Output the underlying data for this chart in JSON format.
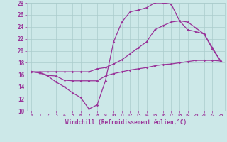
{
  "bg_color": "#cce8e8",
  "grid_color": "#aacccc",
  "line_color": "#993399",
  "marker_color": "#993399",
  "xlabel": "Windchill (Refroidissement éolien,°C)",
  "xlabel_color": "#993399",
  "xtick_color": "#993399",
  "ytick_color": "#993399",
  "xlim": [
    -0.5,
    23.5
  ],
  "ylim": [
    10,
    28
  ],
  "yticks": [
    10,
    12,
    14,
    16,
    18,
    20,
    22,
    24,
    26,
    28
  ],
  "xticks": [
    0,
    1,
    2,
    3,
    4,
    5,
    6,
    7,
    8,
    9,
    10,
    11,
    12,
    13,
    14,
    15,
    16,
    17,
    18,
    19,
    20,
    21,
    22,
    23
  ],
  "series1_x": [
    0,
    1,
    2,
    3,
    4,
    5,
    6,
    7,
    8,
    9,
    10,
    11,
    12,
    13,
    14,
    15,
    16,
    17,
    18,
    19,
    20,
    21,
    22,
    23
  ],
  "series1_y": [
    16.5,
    16.4,
    15.9,
    15.8,
    15.1,
    15.0,
    15.0,
    15.0,
    15.0,
    15.8,
    16.2,
    16.5,
    16.8,
    17.0,
    17.2,
    17.5,
    17.7,
    17.8,
    18.0,
    18.2,
    18.4,
    18.4,
    18.4,
    18.3
  ],
  "series2_x": [
    0,
    1,
    2,
    3,
    4,
    5,
    6,
    7,
    8,
    9,
    10,
    11,
    12,
    13,
    14,
    15,
    16,
    17,
    18,
    19,
    20,
    21,
    22,
    23
  ],
  "series2_y": [
    16.5,
    16.5,
    16.5,
    16.5,
    16.5,
    16.5,
    16.5,
    16.5,
    17.0,
    17.2,
    17.8,
    18.5,
    19.5,
    20.5,
    21.5,
    23.5,
    24.2,
    24.8,
    25.0,
    23.5,
    23.2,
    22.8,
    20.5,
    18.3
  ],
  "series3_x": [
    0,
    1,
    2,
    3,
    4,
    5,
    6,
    7,
    8,
    9,
    10,
    11,
    12,
    13,
    14,
    15,
    16,
    17,
    18,
    19,
    20,
    21,
    22,
    23
  ],
  "series3_y": [
    16.5,
    16.3,
    15.8,
    14.8,
    14.0,
    13.0,
    12.2,
    10.3,
    11.0,
    15.0,
    21.5,
    24.8,
    26.5,
    26.8,
    27.2,
    28.0,
    28.0,
    27.8,
    25.0,
    24.8,
    23.8,
    22.8,
    20.3,
    18.3
  ]
}
